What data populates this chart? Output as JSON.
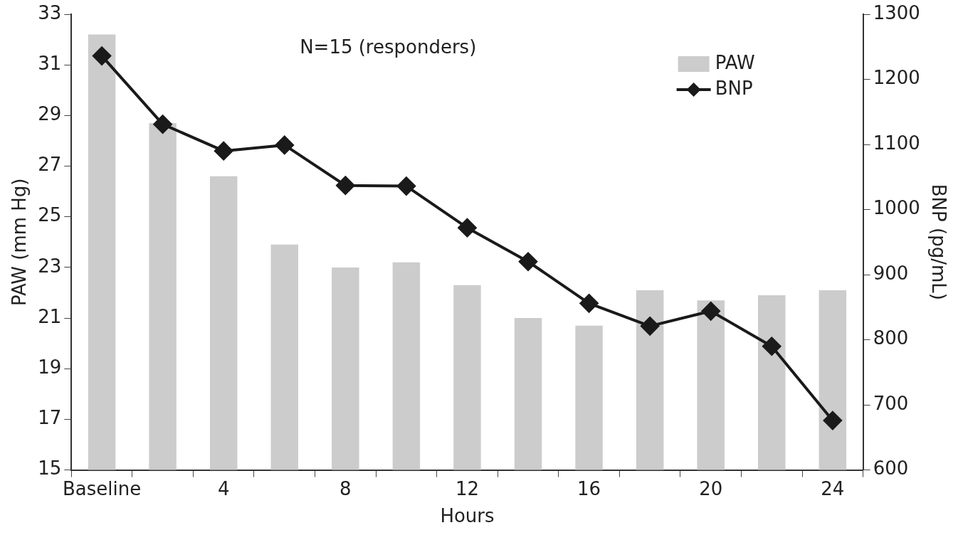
{
  "chart_data": {
    "type": "bar",
    "xlabel": "Hours",
    "ylabel": "PAW (mm Hg)",
    "y2label": "BNP (pg/mL)",
    "categories": [
      "Baseline",
      null,
      "4",
      null,
      "8",
      null,
      "12",
      null,
      "16",
      null,
      "20",
      null,
      "24"
    ],
    "series": [
      {
        "name": "PAW",
        "color": "#cccccc",
        "values": [
          32.2,
          28.7,
          26.6,
          23.9,
          23.0,
          23.2,
          22.3,
          21.0,
          20.7,
          22.1,
          21.7,
          21.9,
          22.1
        ]
      },
      {
        "name": "BNP",
        "type": "line",
        "axis": "y2",
        "color": "#1a1a1a",
        "marker": "diamond",
        "values": [
          1236,
          1131,
          1090,
          1099,
          1037,
          1036,
          972,
          920,
          856,
          821,
          844,
          790,
          676
        ]
      }
    ],
    "ylim": [
      15,
      33
    ],
    "yticks": [
      15,
      17,
      19,
      21,
      23,
      25,
      27,
      29,
      31,
      33
    ],
    "y2lim": [
      600,
      1300
    ],
    "y2ticks": [
      600,
      700,
      800,
      900,
      1000,
      1100,
      1200,
      1300
    ],
    "annotations": [
      "N=15 (responders)"
    ],
    "legend": "top right",
    "grid": false
  }
}
